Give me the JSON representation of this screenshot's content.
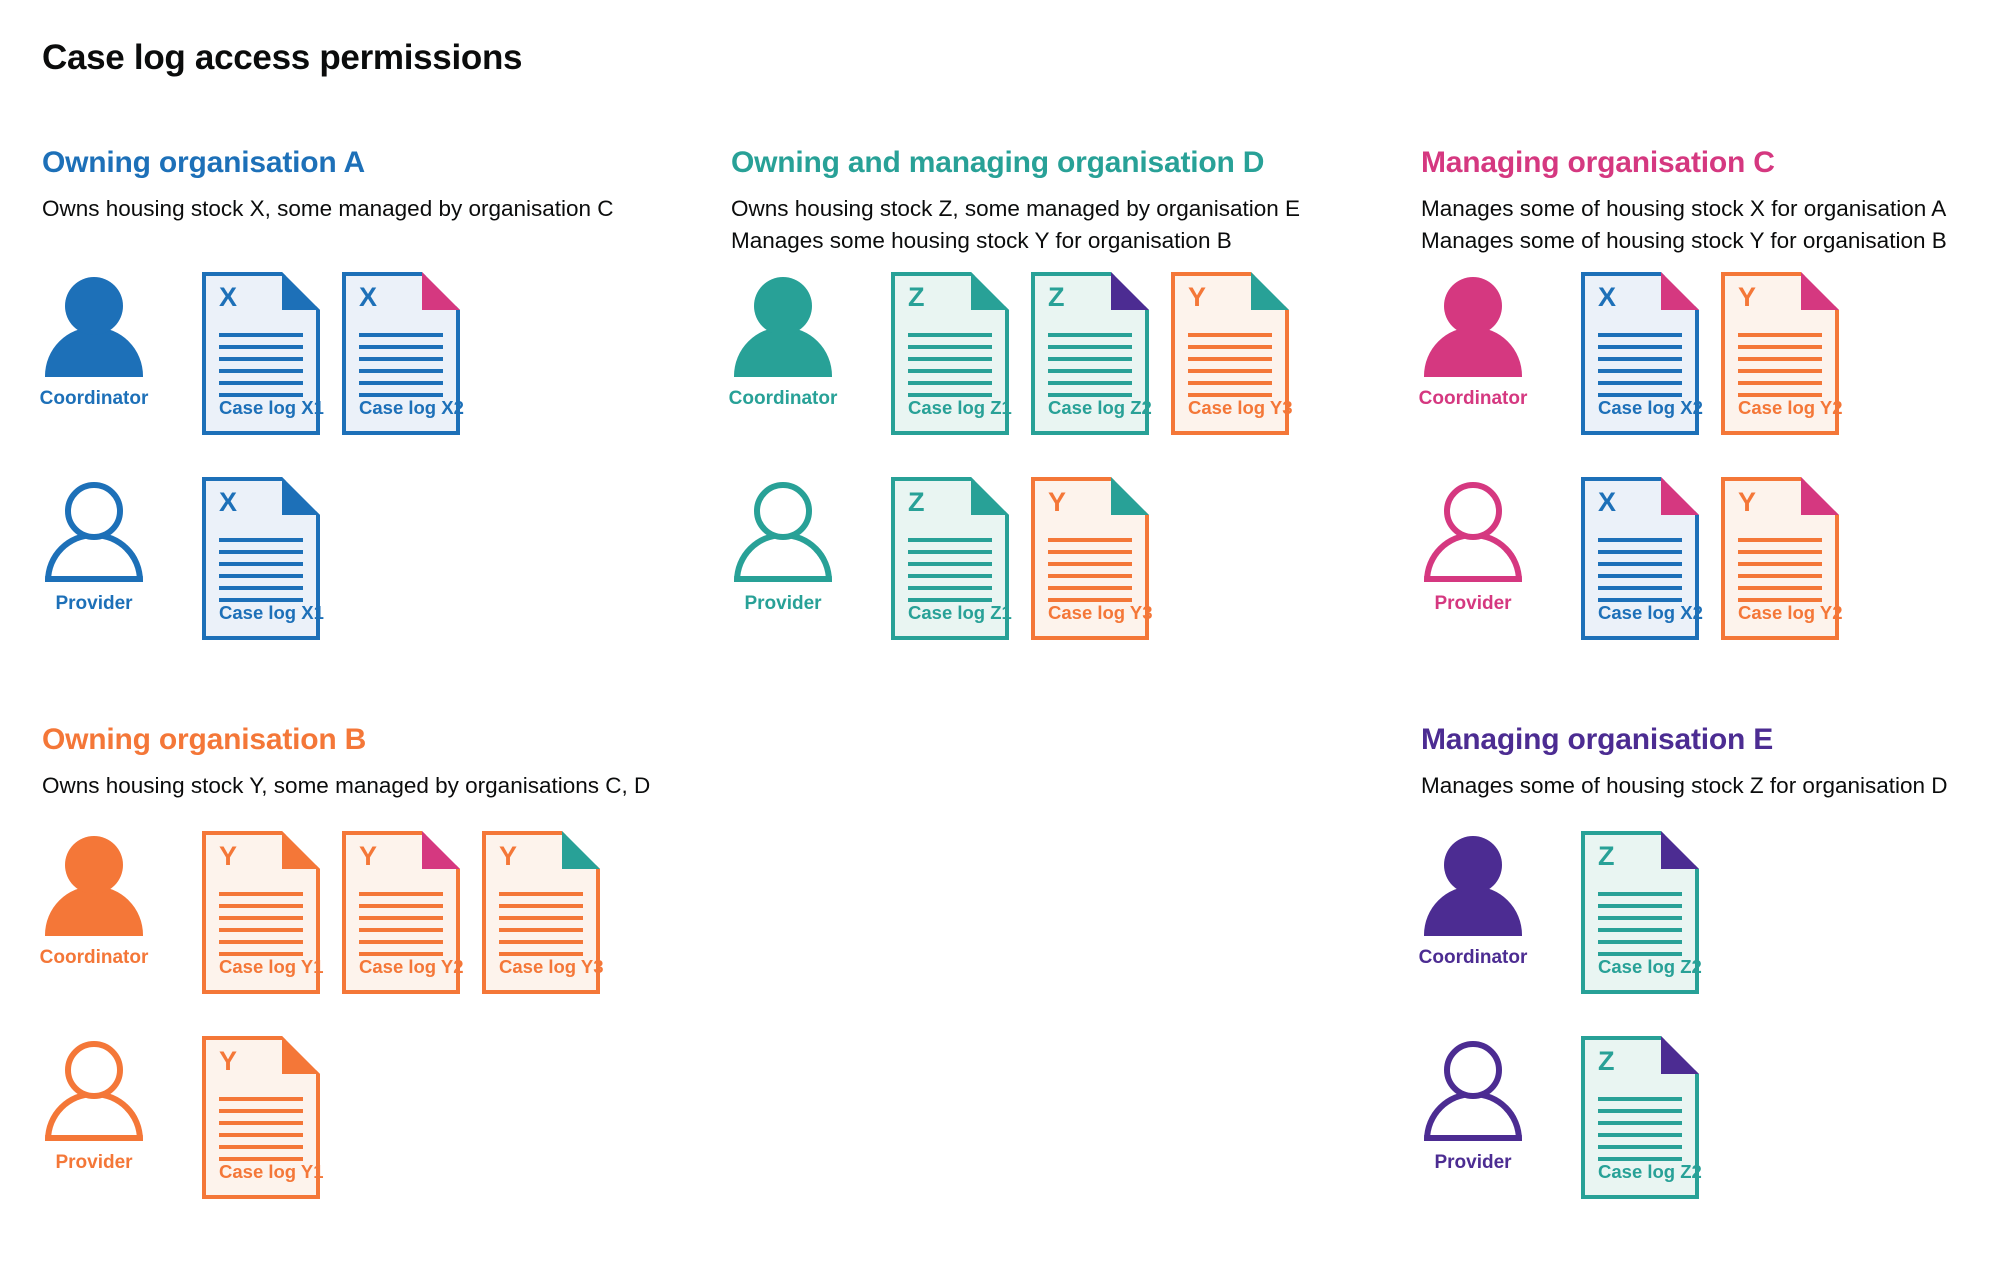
{
  "title": "Case log access permissions",
  "colors": {
    "blue": "#1d70b8",
    "teal": "#28a197",
    "pink": "#d53880",
    "orange": "#f47738",
    "purple": "#4c2c92",
    "blue_tint": "#ebf1f9",
    "teal_tint": "#e9f5f2",
    "orange_tint": "#fdf3ec",
    "text": "#0b0c0c"
  },
  "organisations": [
    {
      "id": "A",
      "name": "Owning organisation A",
      "color": "blue",
      "description": [
        "Owns housing stock X, some managed by organisation C"
      ],
      "roles": [
        {
          "label": "Coordinator",
          "filled": true,
          "docs": [
            {
              "letter": "X",
              "label": "Case log X1",
              "stock": "blue",
              "flap": "blue"
            },
            {
              "letter": "X",
              "label": "Case log X2",
              "stock": "blue",
              "flap": "pink"
            }
          ]
        },
        {
          "label": "Provider",
          "filled": false,
          "docs": [
            {
              "letter": "X",
              "label": "Case log X1",
              "stock": "blue",
              "flap": "blue"
            }
          ]
        }
      ]
    },
    {
      "id": "D",
      "name": "Owning and managing organisation D",
      "color": "teal",
      "description": [
        "Owns housing stock Z, some managed by organisation E",
        "Manages some housing stock Y for organisation B"
      ],
      "roles": [
        {
          "label": "Coordinator",
          "filled": true,
          "docs": [
            {
              "letter": "Z",
              "label": "Case log Z1",
              "stock": "teal",
              "flap": "teal"
            },
            {
              "letter": "Z",
              "label": "Case log Z2",
              "stock": "teal",
              "flap": "purple"
            },
            {
              "letter": "Y",
              "label": "Case log Y3",
              "stock": "orange",
              "flap": "teal"
            }
          ]
        },
        {
          "label": "Provider",
          "filled": false,
          "docs": [
            {
              "letter": "Z",
              "label": "Case log Z1",
              "stock": "teal",
              "flap": "teal"
            },
            {
              "letter": "Y",
              "label": "Case log Y3",
              "stock": "orange",
              "flap": "teal"
            }
          ]
        }
      ]
    },
    {
      "id": "C",
      "name": "Managing organisation C",
      "color": "pink",
      "description": [
        "Manages some of housing stock X for organisation A",
        "Manages some of housing stock Y for organisation B"
      ],
      "roles": [
        {
          "label": "Coordinator",
          "filled": true,
          "docs": [
            {
              "letter": "X",
              "label": "Case log X2",
              "stock": "blue",
              "flap": "pink"
            },
            {
              "letter": "Y",
              "label": "Case log Y2",
              "stock": "orange",
              "flap": "pink"
            }
          ]
        },
        {
          "label": "Provider",
          "filled": false,
          "docs": [
            {
              "letter": "X",
              "label": "Case log X2",
              "stock": "blue",
              "flap": "pink"
            },
            {
              "letter": "Y",
              "label": "Case log Y2",
              "stock": "orange",
              "flap": "pink"
            }
          ]
        }
      ]
    },
    {
      "id": "B",
      "name": "Owning organisation B",
      "color": "orange",
      "description": [
        "Owns housing stock Y, some managed by organisations C, D"
      ],
      "roles": [
        {
          "label": "Coordinator",
          "filled": true,
          "docs": [
            {
              "letter": "Y",
              "label": "Case log Y1",
              "stock": "orange",
              "flap": "orange"
            },
            {
              "letter": "Y",
              "label": "Case log Y2",
              "stock": "orange",
              "flap": "pink"
            },
            {
              "letter": "Y",
              "label": "Case log Y3",
              "stock": "orange",
              "flap": "teal"
            }
          ]
        },
        {
          "label": "Provider",
          "filled": false,
          "docs": [
            {
              "letter": "Y",
              "label": "Case log Y1",
              "stock": "orange",
              "flap": "orange"
            }
          ]
        }
      ]
    },
    {
      "id": "E",
      "name": "Managing organisation E",
      "color": "purple",
      "description": [
        "Manages some of housing stock Z for organisation D"
      ],
      "roles": [
        {
          "label": "Coordinator",
          "filled": true,
          "docs": [
            {
              "letter": "Z",
              "label": "Case log Z2",
              "stock": "teal",
              "flap": "purple"
            }
          ]
        },
        {
          "label": "Provider",
          "filled": false,
          "docs": [
            {
              "letter": "Z",
              "label": "Case log Z2",
              "stock": "teal",
              "flap": "purple"
            }
          ]
        }
      ]
    }
  ]
}
